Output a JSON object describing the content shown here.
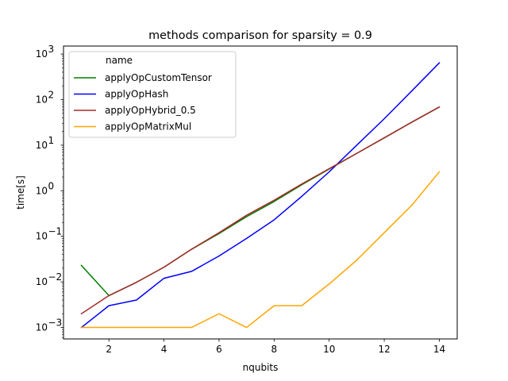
{
  "chart_data": {
    "type": "line",
    "title": "methods comparison for sparsity = 0.9",
    "xlabel": "nqubits",
    "ylabel": "time[s]",
    "yscale": "log",
    "xlim": [
      0.35,
      14.65
    ],
    "ylim": [
      0.00056,
      1500
    ],
    "xticks": [
      2,
      4,
      6,
      8,
      10,
      12,
      14
    ],
    "yticks": [
      0.001,
      0.01,
      0.1,
      1,
      10,
      100,
      1000
    ],
    "ytick_base": "10",
    "ytick_exponents": [
      "−3",
      "−2",
      "−1",
      "0",
      "1",
      "2",
      "3"
    ],
    "grid": false,
    "legend": {
      "title": "name",
      "placement": "top-left"
    },
    "series": [
      {
        "name": "applyOpCustomTensor",
        "color": "#008000",
        "x": [
          1,
          2,
          3,
          4,
          5,
          6,
          7,
          8,
          9,
          10,
          11,
          12,
          13,
          14
        ],
        "values": [
          0.023,
          0.005,
          0.0098,
          0.021,
          0.052,
          0.115,
          0.27,
          0.58,
          1.35,
          3.0,
          6.6,
          14.5,
          32,
          69
        ]
      },
      {
        "name": "applyOpHash",
        "color": "#0000ff",
        "x": [
          1,
          2,
          3,
          4,
          5,
          6,
          7,
          8,
          9,
          10,
          11,
          12,
          13,
          14
        ],
        "values": [
          0.001,
          0.003,
          0.004,
          0.012,
          0.017,
          0.037,
          0.09,
          0.23,
          0.75,
          2.6,
          10,
          38,
          155,
          640
        ]
      },
      {
        "name": "applyOpHybrid_0.5",
        "color": "#a52a2a",
        "x": [
          1,
          2,
          3,
          4,
          5,
          6,
          7,
          8,
          9,
          10,
          11,
          12,
          13,
          14
        ],
        "values": [
          0.002,
          0.005,
          0.0098,
          0.021,
          0.052,
          0.12,
          0.29,
          0.62,
          1.4,
          3.05,
          6.6,
          14.5,
          32,
          69
        ]
      },
      {
        "name": "applyOpMatrixMul",
        "color": "#ffa500",
        "x": [
          1,
          2,
          3,
          4,
          5,
          6,
          7,
          8,
          9,
          10,
          11,
          12,
          13,
          14
        ],
        "values": [
          0.001,
          0.001,
          0.001,
          0.001,
          0.001,
          0.002,
          0.001,
          0.003,
          0.003,
          0.009,
          0.03,
          0.12,
          0.48,
          2.6
        ]
      }
    ]
  }
}
